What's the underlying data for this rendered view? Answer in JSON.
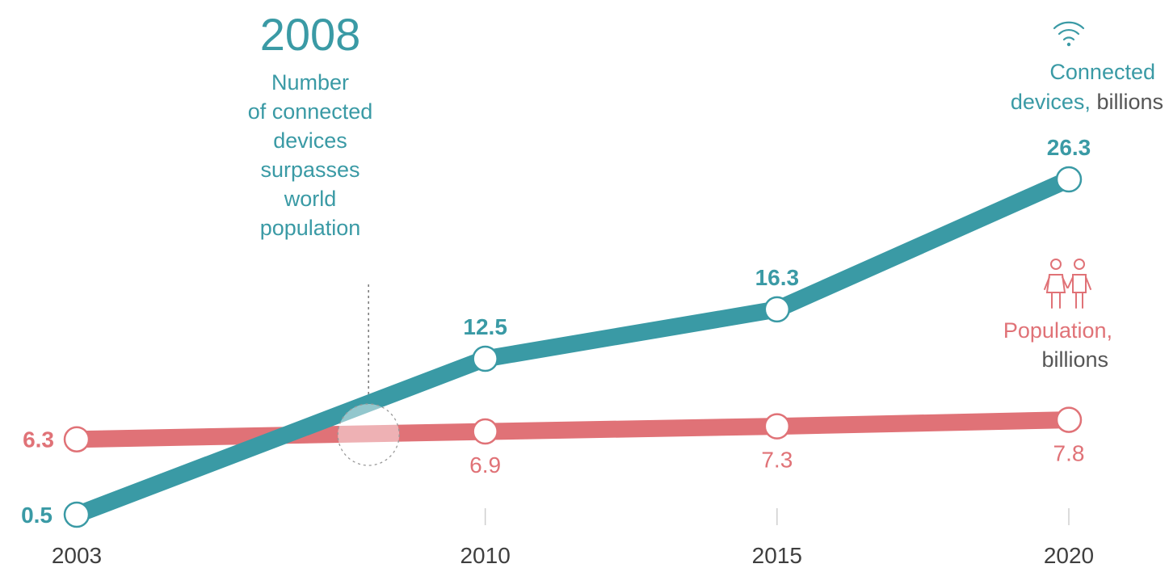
{
  "colors": {
    "devices": "#3a9aa5",
    "population": "#e07277",
    "text_gray": "#555555",
    "tick_gray": "#3f3f3f"
  },
  "icons": {
    "devices": "wifi-icon",
    "population": "people-icon"
  },
  "annotation": {
    "year": "2008",
    "lines": [
      "Number",
      "of connected",
      "devices",
      "surpasses",
      "world",
      "population"
    ]
  },
  "legend": {
    "devices_label_line1": "Connected",
    "devices_label_line2": "devices,",
    "devices_unit": "billions",
    "population_label": "Population,",
    "population_unit": "billions"
  },
  "chart_data": {
    "type": "line",
    "x": [
      2003,
      2010,
      2015,
      2020
    ],
    "x_tick_labels": [
      "2003",
      "2010",
      "2015",
      "2020"
    ],
    "series": [
      {
        "name": "Connected devices, billions",
        "values": [
          0.5,
          12.5,
          16.3,
          26.3
        ],
        "labels": [
          "0.5",
          "12.5",
          "16.3",
          "26.3"
        ]
      },
      {
        "name": "Population, billions",
        "values": [
          6.3,
          6.9,
          7.3,
          7.8
        ],
        "labels": [
          "6.3",
          "6.9",
          "7.3",
          "7.8"
        ]
      }
    ],
    "annotation_x": 2008,
    "grid": false
  }
}
